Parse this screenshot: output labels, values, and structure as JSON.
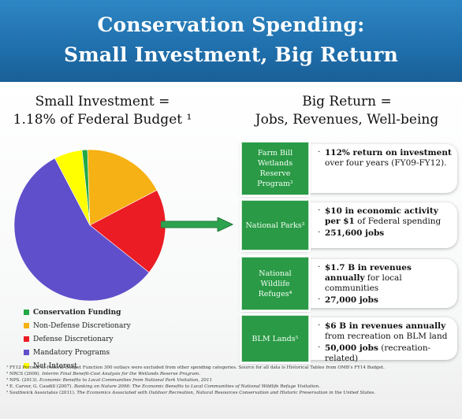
{
  "title": {
    "line1": "Conservation Spending:",
    "line2": "Small Investment, Big Return"
  },
  "left_heading": {
    "line1": "Small Investment =",
    "line2": "1.18% of Federal Budget ¹"
  },
  "right_heading": {
    "line1": "Big Return =",
    "line2": "Jobs, Revenues, Well-being"
  },
  "chart_data": {
    "type": "pie",
    "labels": [
      "Conservation Funding",
      "Non-Defense Discretionary",
      "Defense Discretionary",
      "Mandatory Programs",
      "Net Interest"
    ],
    "values": [
      1.18,
      17.8,
      18.4,
      56.6,
      6.0
    ],
    "colors": [
      "#22a844",
      "#f6b114",
      "#ec1c24",
      "#5f4fca",
      "#ffff00"
    ],
    "legend_position": "bottom-left"
  },
  "legend": [
    {
      "label": "Conservation Funding",
      "color": "#22a844",
      "bold": true
    },
    {
      "label": "Non-Defense Discretionary",
      "color": "#f6b114",
      "bold": false
    },
    {
      "label": "Defense Discretionary",
      "color": "#ec1c24",
      "bold": false
    },
    {
      "label": "Mandatory Programs",
      "color": "#5f4fca",
      "bold": false
    },
    {
      "label": "Net Interest",
      "color": "#ffff00",
      "bold": false
    }
  ],
  "programs": [
    {
      "name": "Farm Bill Wetlands Reserve Program²",
      "name_lines": [
        "Farm Bill",
        "Wetlands",
        "Reserve",
        "Program²"
      ],
      "bullets": [
        {
          "bold": "112% return on investment",
          "rest": " over four years (FY09-FY12)."
        }
      ]
    },
    {
      "name": "National Parks³",
      "name_lines": [
        "National Parks³"
      ],
      "bullets": [
        {
          "bold": "$10 in economic activity per $1",
          "rest": " of Federal spending"
        },
        {
          "bold": "251,600 jobs",
          "rest": ""
        }
      ]
    },
    {
      "name": "National Wildlife Refuges⁴",
      "name_lines": [
        "National",
        "Wildlife",
        "Refuges⁴"
      ],
      "bullets": [
        {
          "bold": "$1.7 B in revenues annually",
          "rest": " for local communities"
        },
        {
          "bold": "27,000 jobs",
          "rest": ""
        }
      ]
    },
    {
      "name": "BLM Lands⁵",
      "name_lines": [
        "BLM Lands⁵"
      ],
      "bullets": [
        {
          "bold": "$6 B in revenues annually",
          "rest": " from recreation on BLM land"
        },
        {
          "bold": "50,000 jobs",
          "rest": " (recreation-related)"
        }
      ]
    }
  ],
  "footnotes": [
    {
      "text": "¹ FY12 Percent of Federal Budget Function 300 outlays were excluded from other spending categories. Source for all data is Historical Tables from OMB’s FY14 Budget.",
      "italic": ""
    },
    {
      "text": "² NRCS (2009). ",
      "italic": "Interim Final Benefit-Cost Analysis for the Wetlands Reserve Program."
    },
    {
      "text": "³ NPS. (2013). ",
      "italic": "Economic Benefits to Local Communities from National Park Visitation, 2011"
    },
    {
      "text": "⁴ E. Carver, G. Caudill (2007). ",
      "italic": "Banking on Nature 2006: The Economic Benefits to Local Communities of National Wildlife Refuge Visitation."
    },
    {
      "text": "⁵ Southwick Associates (2011). ",
      "italic": "The Economics Associated with Outdoor Recreation, Natural Resources Conservation and Historic Preservation in the United States."
    }
  ],
  "colors": {
    "banner": "#1f6fac",
    "program_box": "#2a9a46",
    "arrow": "#2ea34f"
  }
}
